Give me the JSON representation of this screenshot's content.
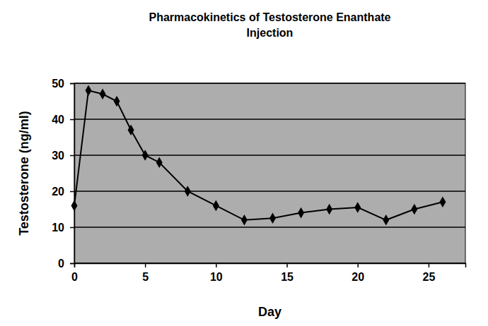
{
  "chart_data": {
    "type": "line",
    "title": "Pharmacokinetics of Testosterone Enanthate Injection",
    "x_label": "Day",
    "y_label": "Testosterone (ng/ml)",
    "x": [
      0,
      1,
      2,
      3,
      4,
      5,
      6,
      8,
      10,
      12,
      14,
      16,
      18,
      20,
      22,
      24,
      26
    ],
    "values": [
      16,
      48,
      47,
      45,
      37,
      30,
      28,
      20,
      16,
      12,
      12.5,
      14,
      15,
      15.5,
      12,
      15,
      17
    ],
    "color": "#000000",
    "marker": "diamond",
    "xlim": [
      0,
      27.6
    ],
    "xticks": [
      0,
      5,
      10,
      15,
      20,
      25
    ],
    "ylim": [
      0,
      50
    ],
    "yticks": [
      0,
      10,
      20,
      30,
      40,
      50
    ],
    "grid": true
  }
}
